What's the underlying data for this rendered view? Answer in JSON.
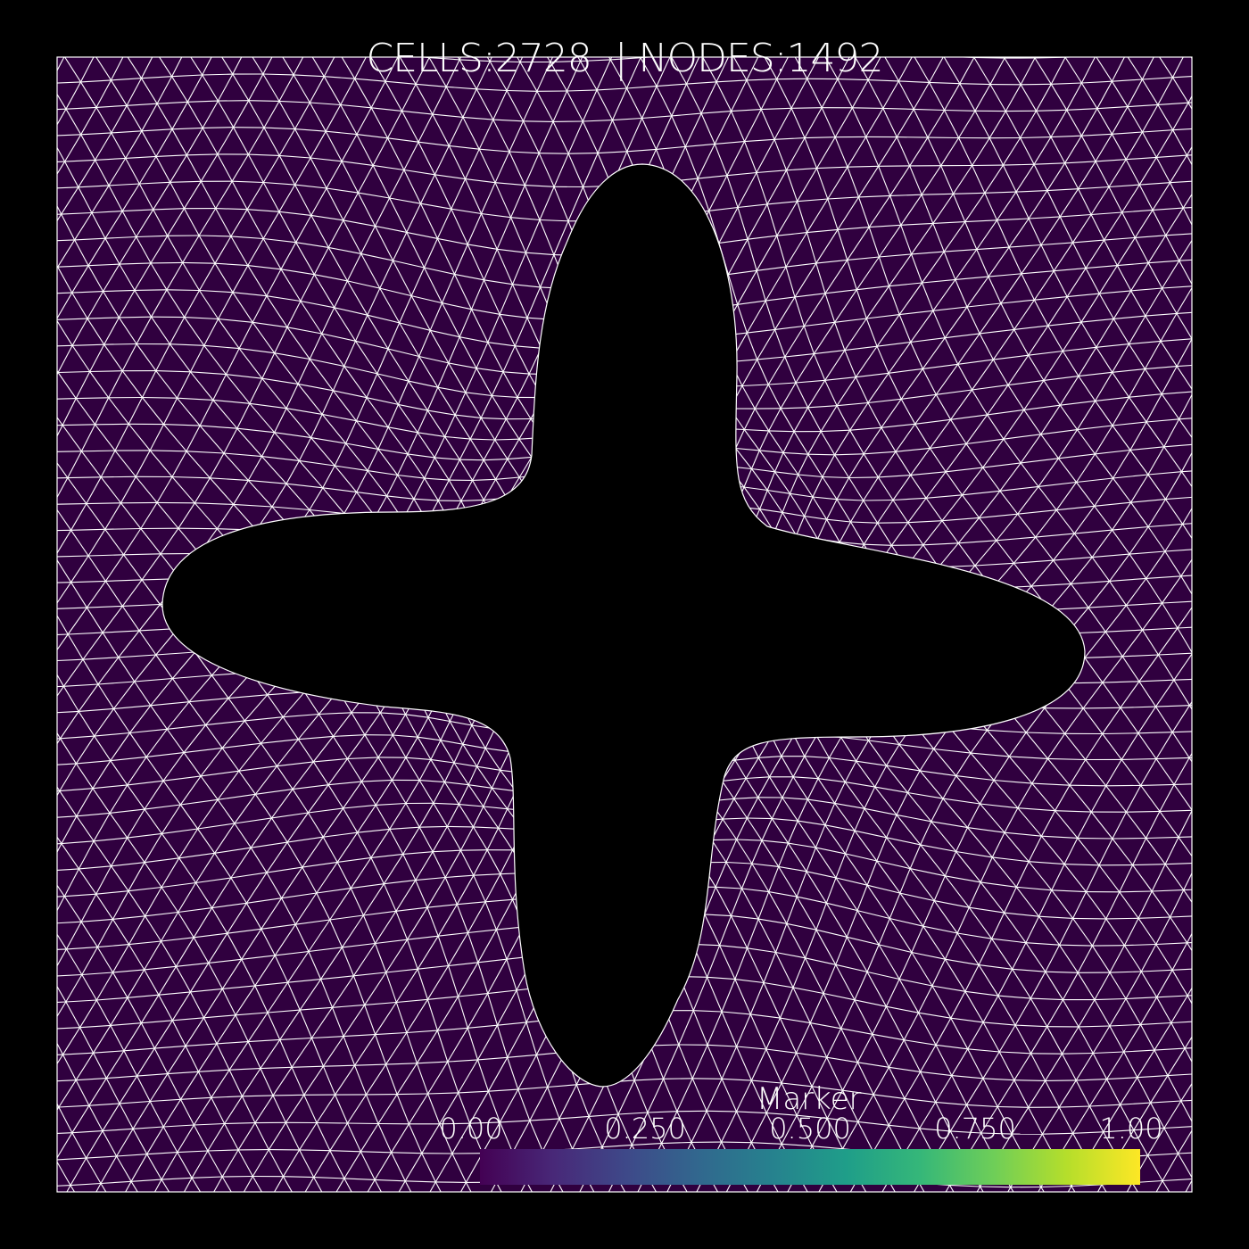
{
  "header": {
    "title": "CELLS:2728  | NODES:1492"
  },
  "mesh": {
    "background_color": "#000000",
    "fill_color": "#30003f",
    "edge_color": "#ffffff",
    "hole_color": "#000000",
    "hole_shape": "four-lobed-cross"
  },
  "colorbar": {
    "title": "Marker",
    "colormap": "viridis",
    "range": [
      0.0,
      1.0
    ],
    "ticks": [
      {
        "value": 0.0,
        "label": "0.00"
      },
      {
        "value": 0.25,
        "label": "0.250"
      },
      {
        "value": 0.5,
        "label": "0.500"
      },
      {
        "value": 0.75,
        "label": "0.750"
      },
      {
        "value": 1.0,
        "label": "1.00"
      }
    ],
    "stops": [
      "#440154",
      "#482878",
      "#3e4989",
      "#31688e",
      "#26828e",
      "#1f9e89",
      "#35b779",
      "#6ece58",
      "#b5de2b",
      "#fde725"
    ]
  }
}
